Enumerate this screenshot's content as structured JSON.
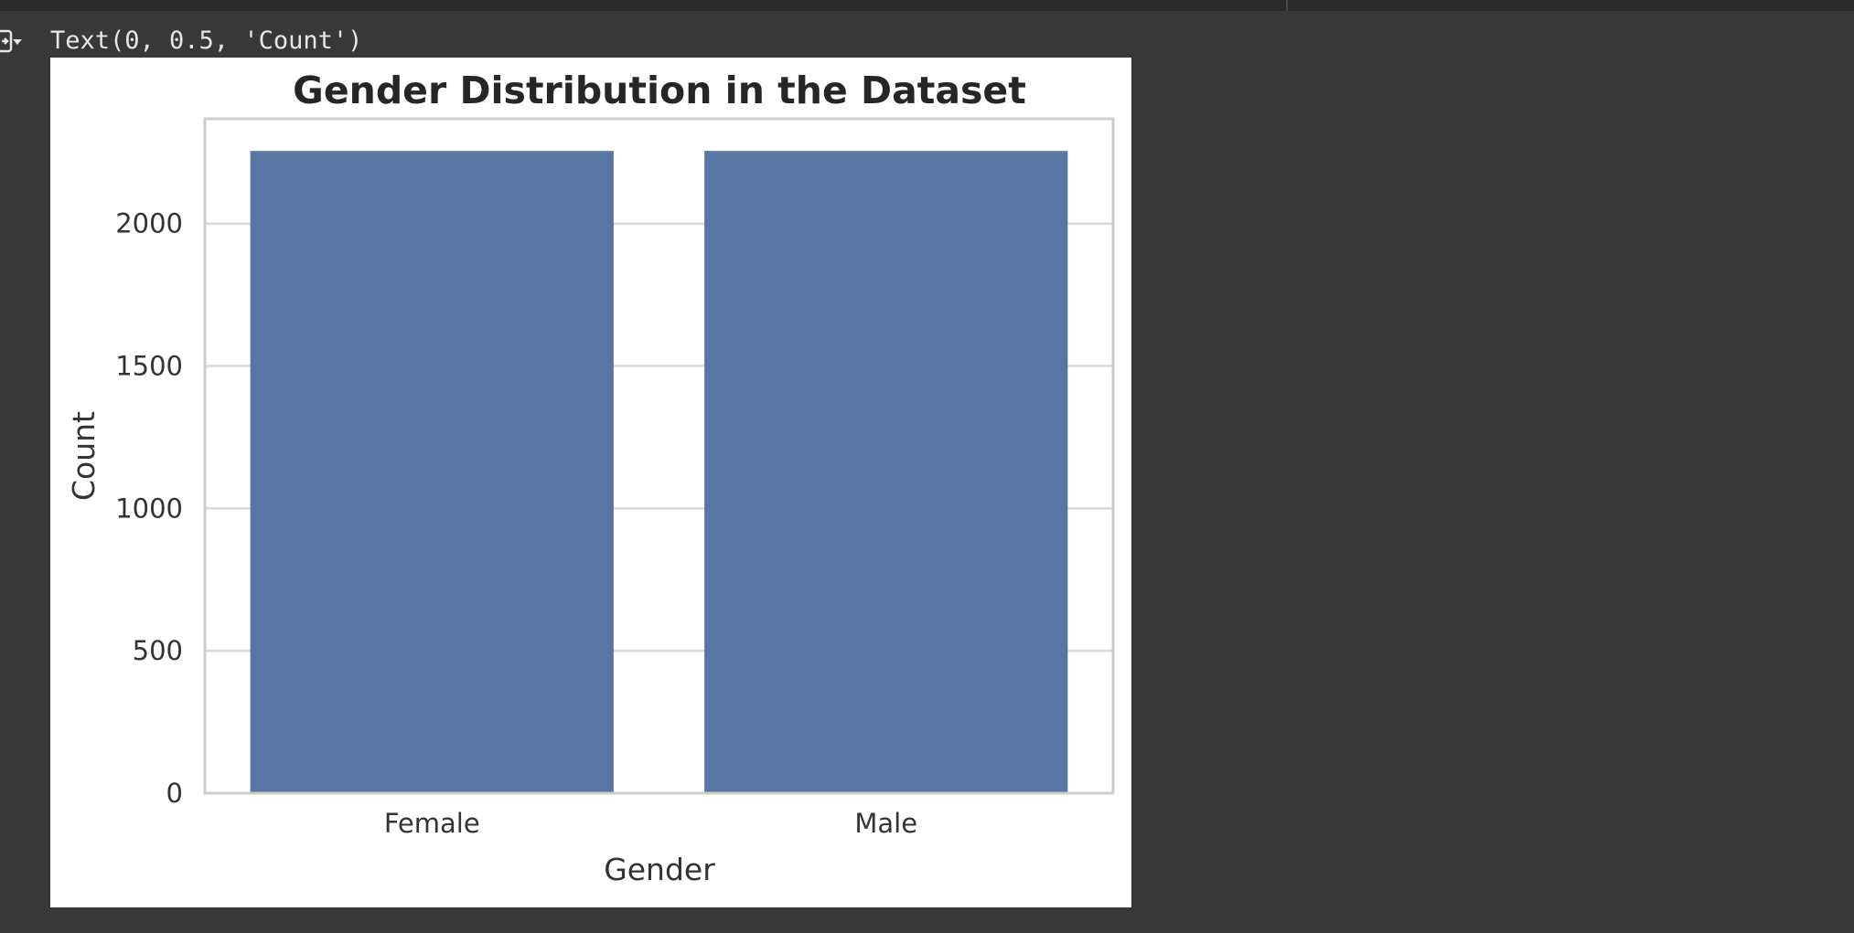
{
  "cell_output": {
    "text": "Text(0, 0.5, 'Count')",
    "toggle_icon": "output-collapse-icon"
  },
  "colors": {
    "background": "#383838",
    "bar": "#5975a4",
    "grid": "#d9d9d9",
    "frame": "#cccccc"
  },
  "chart_data": {
    "type": "bar",
    "title": "Gender Distribution in the Dataset",
    "xlabel": "Gender",
    "ylabel": "Count",
    "categories": [
      "Female",
      "Male"
    ],
    "values": [
      2255,
      2255
    ],
    "ylim": [
      0,
      2368
    ],
    "yticks": [
      0,
      500,
      1000,
      1500,
      2000
    ],
    "grid": "horizontal",
    "legend": "none"
  }
}
